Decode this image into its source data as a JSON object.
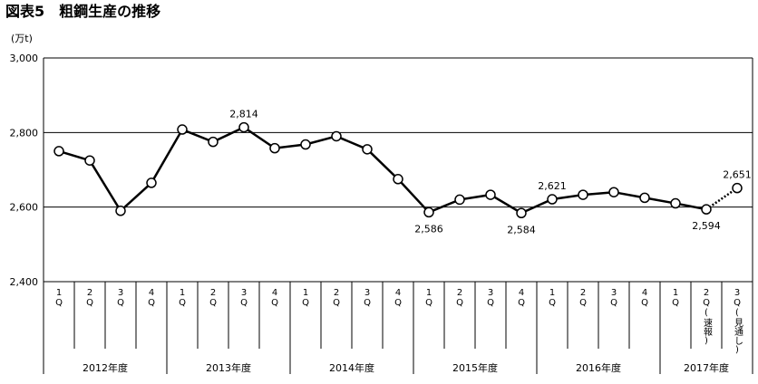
{
  "chart_data": {
    "type": "line",
    "title": "図表5　粗鋼生産の推移",
    "y_unit": "(万t)",
    "ylim": [
      2400,
      3000
    ],
    "yticks": [
      {
        "value": 2400,
        "label": "2,400"
      },
      {
        "value": 2600,
        "label": "2,600"
      },
      {
        "value": 2800,
        "label": "2,800"
      },
      {
        "value": 3000,
        "label": "3,000"
      }
    ],
    "grid": true,
    "groups": [
      {
        "label": "2012年度",
        "categories": [
          "1Q",
          "2Q",
          "3Q",
          "4Q"
        ]
      },
      {
        "label": "2013年度",
        "categories": [
          "1Q",
          "2Q",
          "3Q",
          "4Q"
        ]
      },
      {
        "label": "2014年度",
        "categories": [
          "1Q",
          "2Q",
          "3Q",
          "4Q"
        ]
      },
      {
        "label": "2015年度",
        "categories": [
          "1Q",
          "2Q",
          "3Q",
          "4Q"
        ]
      },
      {
        "label": "2016年度",
        "categories": [
          "1Q",
          "2Q",
          "3Q",
          "4Q"
        ]
      },
      {
        "label": "2017年度",
        "categories": [
          "1Q",
          "2Q(速報)",
          "3Q(見通し)"
        ]
      }
    ],
    "series": [
      {
        "color": "#000000",
        "values": [
          2750,
          2725,
          2590,
          2665,
          2808,
          2775,
          2814,
          2758,
          2768,
          2790,
          2755,
          2675,
          2586,
          2620,
          2633,
          2584,
          2621,
          2633,
          2640,
          2625,
          2610,
          2594,
          2651
        ],
        "value_labels": [
          null,
          null,
          null,
          null,
          null,
          null,
          "2,814",
          null,
          null,
          null,
          null,
          null,
          "2,586",
          null,
          null,
          "2,584",
          "2,621",
          null,
          null,
          null,
          null,
          "2,594",
          "2,651"
        ]
      }
    ],
    "dotted_last_segment": true
  }
}
